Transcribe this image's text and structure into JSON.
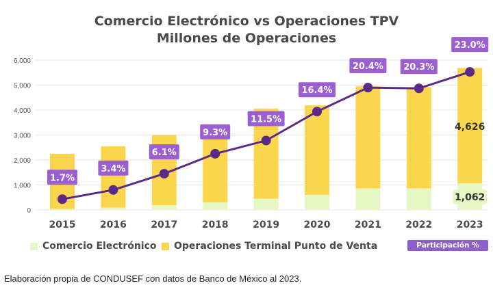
{
  "chart_data": {
    "type": "bar",
    "title": "Comercio Electrónico vs Operaciones TPV",
    "subtitle": "Millones de Operaciones",
    "categories": [
      "2015",
      "2016",
      "2017",
      "2018",
      "2019",
      "2020",
      "2021",
      "2022",
      "2023"
    ],
    "ylim": [
      0,
      6000
    ],
    "yticks": [
      0,
      1000,
      2000,
      3000,
      4000,
      5000,
      6000
    ],
    "ytick_labels": [
      "0",
      "1,000",
      "2,000",
      "3,000",
      "4,000",
      "5,000",
      "6,000"
    ],
    "stacked": true,
    "grid": true,
    "series": [
      {
        "name": "Comercio Electrónico",
        "color": "#e4f7c4",
        "values": [
          40,
          90,
          190,
          300,
          450,
          600,
          860,
          860,
          1062
        ]
      },
      {
        "name": "Operaciones Terminal Punto de Venta",
        "color": "#fcd54e",
        "values": [
          2210,
          2460,
          2810,
          3020,
          3610,
          3590,
          4090,
          4060,
          4626
        ]
      }
    ],
    "line": {
      "name": "Participación %",
      "color": "#5b2a86",
      "values_on_chart_scale": [
        430,
        800,
        1450,
        2250,
        2780,
        3940,
        4900,
        4870,
        5530
      ],
      "labels": [
        "1.7%",
        "3.4%",
        "6.1%",
        "9.3%",
        "11.5%",
        "16.4%",
        "20.4%",
        "20.3%",
        "23.0%"
      ]
    },
    "data_labels": {
      "2023_tpv": "4,626",
      "2023_ecommerce": "1,062"
    },
    "legend": {
      "position": "bottom-left",
      "items": [
        "Comercio Electrónico",
        "Operaciones Terminal Punto de Venta"
      ],
      "badge": "Participación %"
    },
    "label_bg": "#9b5fd1",
    "source": "Elaboración propia de CONDUSEF con datos de Banco de México al 2023."
  }
}
